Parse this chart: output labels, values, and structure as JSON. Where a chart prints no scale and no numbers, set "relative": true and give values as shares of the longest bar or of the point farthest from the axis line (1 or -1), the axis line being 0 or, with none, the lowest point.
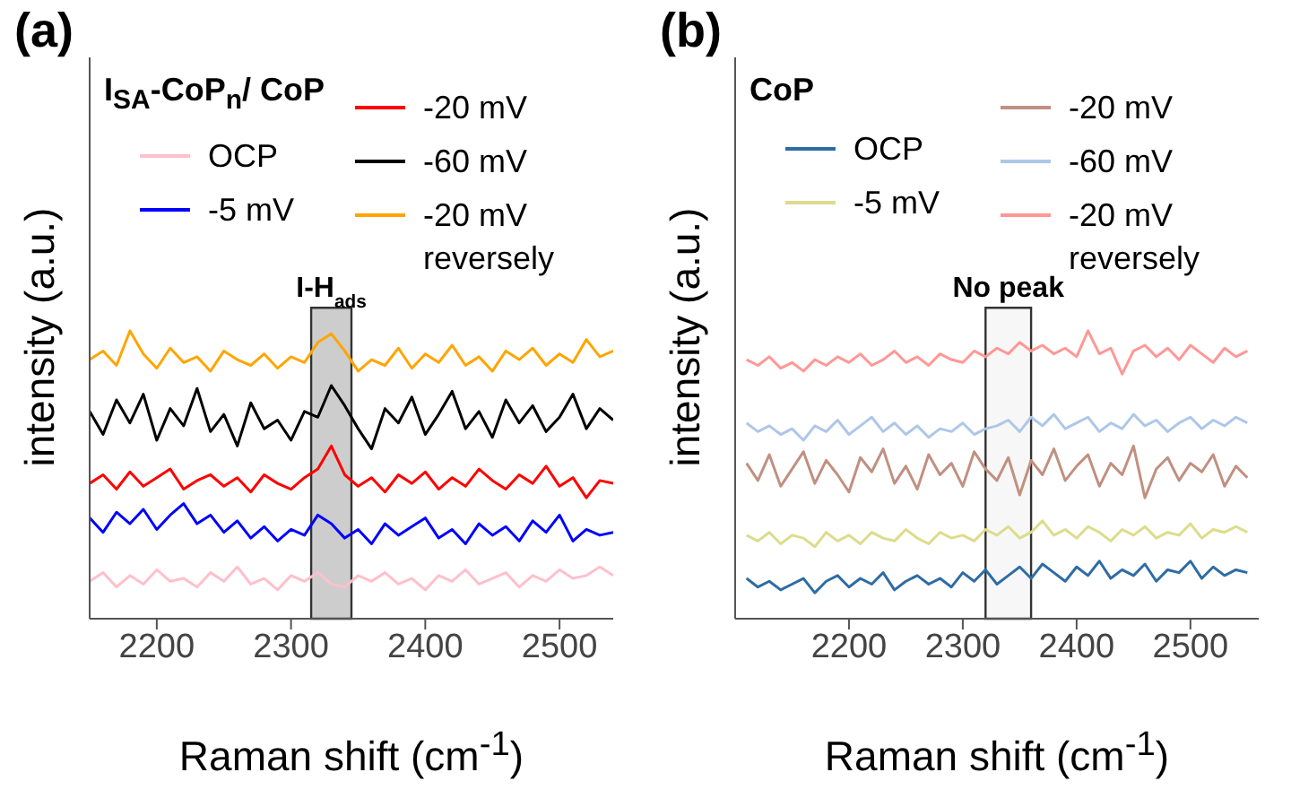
{
  "chart_data": [
    {
      "type": "line",
      "title": "(a)",
      "legend_title": "I$_{SA}$-CoP$_{n}$/ CoP",
      "xlabel": "Raman shift (cm$^{-1}$)",
      "ylabel": "intensity (a.u.)",
      "relative": true,
      "legend": "top",
      "marker": "none",
      "grid": false,
      "xlim": [
        2150,
        2540
      ],
      "xticks": [
        2200,
        2300,
        2400,
        2500
      ],
      "x": [
        2150,
        2160,
        2170,
        2180,
        2190,
        2200,
        2210,
        2220,
        2230,
        2240,
        2250,
        2260,
        2270,
        2280,
        2290,
        2300,
        2310,
        2320,
        2330,
        2340,
        2350,
        2360,
        2370,
        2380,
        2390,
        2400,
        2410,
        2420,
        2430,
        2440,
        2450,
        2460,
        2470,
        2480,
        2490,
        2500,
        2510,
        2520,
        2530,
        2540
      ],
      "bands": [
        {
          "axis": "x",
          "from": 2315,
          "to": 2345,
          "label": "I-H$_{ads}$",
          "color": "#c8c8c8"
        }
      ],
      "series": [
        {
          "name": "OCP",
          "color": "#ffc0cb",
          "values": [
            0.13,
            0.16,
            0.11,
            0.15,
            0.12,
            0.17,
            0.13,
            0.14,
            0.11,
            0.16,
            0.13,
            0.18,
            0.12,
            0.14,
            0.1,
            0.15,
            0.13,
            0.16,
            0.12,
            0.11,
            0.15,
            0.13,
            0.16,
            0.12,
            0.14,
            0.1,
            0.15,
            0.13,
            0.17,
            0.12,
            0.14,
            0.16,
            0.11,
            0.15,
            0.13,
            0.17,
            0.14,
            0.15,
            0.18,
            0.15
          ]
        },
        {
          "name": "-5 mV",
          "color": "#0000ff",
          "values": [
            0.35,
            0.3,
            0.37,
            0.33,
            0.38,
            0.31,
            0.36,
            0.4,
            0.33,
            0.36,
            0.3,
            0.34,
            0.28,
            0.32,
            0.27,
            0.31,
            0.29,
            0.36,
            0.33,
            0.28,
            0.31,
            0.26,
            0.33,
            0.29,
            0.32,
            0.35,
            0.28,
            0.31,
            0.26,
            0.33,
            0.29,
            0.32,
            0.27,
            0.34,
            0.3,
            0.36,
            0.27,
            0.31,
            0.29,
            0.3
          ]
        },
        {
          "name": "-20 mV",
          "color": "#ff0000",
          "values": [
            0.47,
            0.5,
            0.45,
            0.51,
            0.46,
            0.49,
            0.52,
            0.45,
            0.48,
            0.5,
            0.46,
            0.49,
            0.44,
            0.5,
            0.47,
            0.45,
            0.49,
            0.52,
            0.6,
            0.5,
            0.46,
            0.49,
            0.44,
            0.5,
            0.47,
            0.51,
            0.45,
            0.49,
            0.46,
            0.52,
            0.48,
            0.45,
            0.5,
            0.47,
            0.53,
            0.46,
            0.49,
            0.42,
            0.48,
            0.47
          ]
        },
        {
          "name": "-60 mV",
          "color": "#000000",
          "values": [
            0.72,
            0.64,
            0.76,
            0.68,
            0.78,
            0.62,
            0.73,
            0.67,
            0.8,
            0.65,
            0.71,
            0.6,
            0.75,
            0.66,
            0.69,
            0.62,
            0.72,
            0.7,
            0.81,
            0.74,
            0.66,
            0.59,
            0.73,
            0.68,
            0.77,
            0.64,
            0.71,
            0.79,
            0.66,
            0.72,
            0.63,
            0.76,
            0.68,
            0.74,
            0.65,
            0.7,
            0.78,
            0.66,
            0.73,
            0.69
          ]
        },
        {
          "name": "-20 mV reversely",
          "color": "#ffa500",
          "values": [
            0.9,
            0.93,
            0.88,
            1.0,
            0.92,
            0.87,
            0.94,
            0.89,
            0.91,
            0.86,
            0.93,
            0.9,
            0.88,
            0.92,
            0.87,
            0.91,
            0.89,
            0.96,
            0.99,
            0.93,
            0.86,
            0.9,
            0.88,
            0.94,
            0.87,
            0.92,
            0.89,
            0.95,
            0.88,
            0.91,
            0.86,
            0.93,
            0.9,
            0.94,
            0.88,
            0.92,
            0.89,
            0.97,
            0.91,
            0.93
          ]
        }
      ]
    },
    {
      "type": "line",
      "title": "(b)",
      "legend_title": "CoP",
      "xlabel": "Raman shift (cm$^{-1}$)",
      "ylabel": "intensity (a.u.)",
      "relative": true,
      "legend": "top",
      "marker": "none",
      "grid": false,
      "xlim": [
        2100,
        2560
      ],
      "xticks": [
        2200,
        2300,
        2400,
        2500
      ],
      "x": [
        2110,
        2120,
        2130,
        2140,
        2150,
        2160,
        2170,
        2180,
        2190,
        2200,
        2210,
        2220,
        2230,
        2240,
        2250,
        2260,
        2270,
        2280,
        2290,
        2300,
        2310,
        2320,
        2330,
        2340,
        2350,
        2360,
        2370,
        2380,
        2390,
        2400,
        2410,
        2420,
        2430,
        2440,
        2450,
        2460,
        2470,
        2480,
        2490,
        2500,
        2510,
        2520,
        2530,
        2540,
        2550
      ],
      "bands": [
        {
          "axis": "x",
          "from": 2320,
          "to": 2360,
          "label": "No peak"
        }
      ],
      "series": [
        {
          "name": "OCP",
          "color": "#2e6ca4",
          "values": [
            0.14,
            0.11,
            0.13,
            0.1,
            0.12,
            0.14,
            0.09,
            0.13,
            0.15,
            0.11,
            0.14,
            0.12,
            0.16,
            0.1,
            0.13,
            0.15,
            0.12,
            0.14,
            0.11,
            0.16,
            0.13,
            0.17,
            0.12,
            0.15,
            0.18,
            0.14,
            0.19,
            0.16,
            0.13,
            0.18,
            0.15,
            0.2,
            0.14,
            0.17,
            0.15,
            0.19,
            0.13,
            0.17,
            0.16,
            0.2,
            0.14,
            0.18,
            0.15,
            0.17,
            0.16
          ]
        },
        {
          "name": "-5 mV",
          "color": "#dcdc8c",
          "values": [
            0.29,
            0.27,
            0.3,
            0.26,
            0.29,
            0.28,
            0.25,
            0.3,
            0.27,
            0.29,
            0.26,
            0.3,
            0.28,
            0.27,
            0.31,
            0.28,
            0.26,
            0.3,
            0.28,
            0.29,
            0.27,
            0.31,
            0.29,
            0.32,
            0.28,
            0.3,
            0.34,
            0.29,
            0.31,
            0.28,
            0.32,
            0.3,
            0.27,
            0.31,
            0.29,
            0.32,
            0.28,
            0.3,
            0.29,
            0.33,
            0.28,
            0.31,
            0.3,
            0.32,
            0.3
          ]
        },
        {
          "name": "-20 mV",
          "color": "#c09080",
          "values": [
            0.54,
            0.48,
            0.57,
            0.46,
            0.52,
            0.58,
            0.47,
            0.55,
            0.5,
            0.44,
            0.56,
            0.51,
            0.59,
            0.47,
            0.53,
            0.45,
            0.57,
            0.5,
            0.54,
            0.46,
            0.58,
            0.52,
            0.48,
            0.56,
            0.43,
            0.55,
            0.5,
            0.59,
            0.48,
            0.53,
            0.57,
            0.46,
            0.54,
            0.5,
            0.6,
            0.42,
            0.52,
            0.56,
            0.48,
            0.54,
            0.51,
            0.57,
            0.46,
            0.53,
            0.49
          ]
        },
        {
          "name": "-60 mV",
          "color": "#aec7e8",
          "values": [
            0.68,
            0.65,
            0.67,
            0.64,
            0.66,
            0.62,
            0.67,
            0.65,
            0.69,
            0.64,
            0.67,
            0.7,
            0.65,
            0.68,
            0.64,
            0.67,
            0.63,
            0.66,
            0.65,
            0.68,
            0.64,
            0.66,
            0.67,
            0.69,
            0.65,
            0.7,
            0.67,
            0.71,
            0.66,
            0.68,
            0.7,
            0.65,
            0.68,
            0.66,
            0.71,
            0.67,
            0.69,
            0.65,
            0.68,
            0.7,
            0.66,
            0.69,
            0.67,
            0.7,
            0.68
          ]
        },
        {
          "name": "-20 mV reversely",
          "color": "#ff9896",
          "values": [
            0.9,
            0.88,
            0.91,
            0.87,
            0.89,
            0.86,
            0.9,
            0.88,
            0.91,
            0.89,
            0.92,
            0.88,
            0.9,
            0.93,
            0.89,
            0.91,
            0.88,
            0.92,
            0.9,
            0.89,
            0.93,
            0.91,
            0.94,
            0.92,
            0.96,
            0.93,
            0.95,
            0.92,
            0.94,
            0.91,
            1.0,
            0.92,
            0.94,
            0.85,
            0.93,
            0.95,
            0.91,
            0.94,
            0.9,
            0.95,
            0.92,
            0.89,
            0.94,
            0.91,
            0.93
          ]
        }
      ]
    }
  ]
}
